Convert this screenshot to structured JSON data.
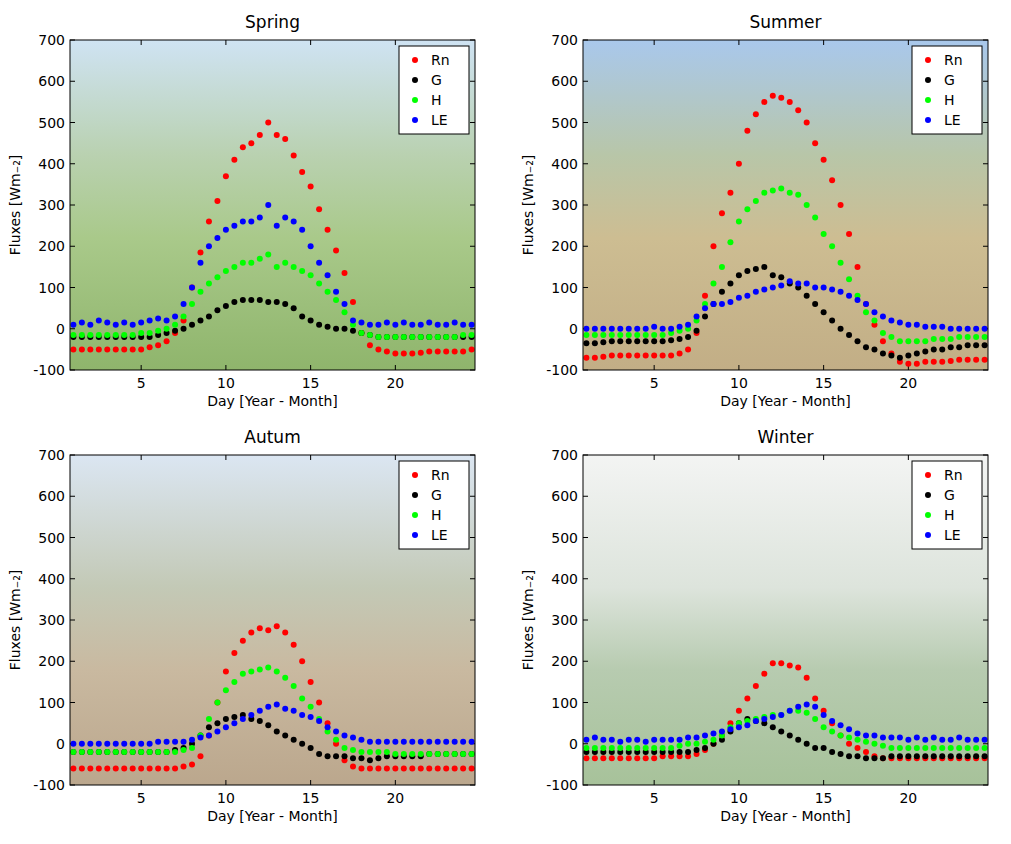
{
  "chart_data": [
    {
      "type": "scatter",
      "title": "Spring",
      "x_label": "Day [Year - Month]",
      "y_label": "Fluxes [Wm₋₂]",
      "marker": "circle",
      "legend": "upper right",
      "xlim": [
        0.8,
        24.7
      ],
      "xticks": [
        5,
        10,
        15,
        20
      ],
      "ylim": [
        -100,
        700
      ],
      "yticks": [
        -100,
        0,
        100,
        200,
        300,
        400,
        500,
        600,
        700
      ],
      "x": [
        1,
        1.5,
        2,
        2.5,
        3,
        3.5,
        4,
        4.5,
        5,
        5.5,
        6,
        6.5,
        7,
        7.5,
        8,
        8.5,
        9,
        9.5,
        10,
        10.5,
        11,
        11.5,
        12,
        12.5,
        13,
        13.5,
        14,
        14.5,
        15,
        15.5,
        16,
        16.5,
        17,
        17.5,
        18,
        18.5,
        19,
        19.5,
        20,
        20.5,
        21,
        21.5,
        22,
        22.5,
        23,
        23.5,
        24,
        24.5
      ],
      "series": [
        {
          "name": "Rn",
          "color": "#ff0000",
          "values": [
            -50,
            -50,
            -50,
            -50,
            -50,
            -50,
            -50,
            -50,
            -50,
            -45,
            -40,
            -30,
            -10,
            20,
            100,
            185,
            260,
            310,
            370,
            410,
            440,
            450,
            470,
            500,
            470,
            460,
            420,
            380,
            345,
            290,
            240,
            190,
            135,
            65,
            -10,
            -40,
            -50,
            -55,
            -60,
            -60,
            -60,
            -58,
            -55,
            -55,
            -55,
            -55,
            -55,
            -50
          ]
        },
        {
          "name": "G",
          "color": "#000000",
          "values": [
            -20,
            -20,
            -20,
            -20,
            -20,
            -20,
            -20,
            -20,
            -20,
            -20,
            -15,
            -10,
            -5,
            0,
            10,
            20,
            30,
            45,
            55,
            65,
            70,
            70,
            70,
            65,
            65,
            60,
            50,
            30,
            20,
            10,
            5,
            0,
            0,
            -5,
            -10,
            -15,
            -20,
            -20,
            -20,
            -20,
            -20,
            -20,
            -20,
            -20,
            -20,
            -20,
            -20,
            -20
          ]
        },
        {
          "name": "H",
          "color": "#00ff00",
          "values": [
            -15,
            -15,
            -15,
            -15,
            -15,
            -15,
            -15,
            -15,
            -10,
            -10,
            -5,
            0,
            10,
            30,
            60,
            90,
            110,
            125,
            140,
            150,
            160,
            160,
            170,
            180,
            150,
            160,
            150,
            140,
            130,
            110,
            90,
            70,
            40,
            10,
            -10,
            -15,
            -20,
            -20,
            -20,
            -20,
            -20,
            -20,
            -20,
            -20,
            -20,
            -20,
            -15,
            -15
          ]
        },
        {
          "name": "LE",
          "color": "#0000ff",
          "values": [
            10,
            15,
            10,
            20,
            15,
            10,
            15,
            10,
            15,
            20,
            25,
            20,
            30,
            60,
            100,
            160,
            200,
            220,
            240,
            250,
            260,
            260,
            270,
            300,
            250,
            270,
            260,
            240,
            200,
            160,
            130,
            90,
            60,
            20,
            15,
            10,
            10,
            15,
            10,
            15,
            10,
            10,
            15,
            10,
            10,
            15,
            10,
            10
          ]
        }
      ]
    },
    {
      "type": "scatter",
      "title": "Summer",
      "x_label": "Day [Year - Month]",
      "y_label": "Fluxes [Wm₋₂]",
      "marker": "circle",
      "legend": "upper right",
      "xlim": [
        0.8,
        24.7
      ],
      "xticks": [
        5,
        10,
        15,
        20
      ],
      "ylim": [
        -100,
        700
      ],
      "yticks": [
        -100,
        0,
        100,
        200,
        300,
        400,
        500,
        600,
        700
      ],
      "x": [
        1,
        1.5,
        2,
        2.5,
        3,
        3.5,
        4,
        4.5,
        5,
        5.5,
        6,
        6.5,
        7,
        7.5,
        8,
        8.5,
        9,
        9.5,
        10,
        10.5,
        11,
        11.5,
        12,
        12.5,
        13,
        13.5,
        14,
        14.5,
        15,
        15.5,
        16,
        16.5,
        17,
        17.5,
        18,
        18.5,
        19,
        19.5,
        20,
        20.5,
        21,
        21.5,
        22,
        22.5,
        23,
        23.5,
        24,
        24.5
      ],
      "series": [
        {
          "name": "Rn",
          "color": "#ff0000",
          "values": [
            -70,
            -70,
            -68,
            -65,
            -65,
            -65,
            -65,
            -65,
            -65,
            -65,
            -65,
            -60,
            -50,
            -10,
            80,
            200,
            280,
            330,
            400,
            480,
            520,
            550,
            565,
            560,
            550,
            530,
            500,
            450,
            410,
            360,
            300,
            230,
            150,
            60,
            10,
            -30,
            -60,
            -80,
            -85,
            -85,
            -80,
            -80,
            -80,
            -78,
            -75,
            -75,
            -75,
            -75
          ]
        },
        {
          "name": "G",
          "color": "#000000",
          "values": [
            -35,
            -35,
            -33,
            -30,
            -30,
            -30,
            -30,
            -30,
            -30,
            -30,
            -28,
            -25,
            -20,
            -5,
            30,
            60,
            90,
            110,
            130,
            140,
            145,
            150,
            130,
            125,
            110,
            100,
            80,
            60,
            40,
            20,
            0,
            -15,
            -30,
            -45,
            -50,
            -60,
            -65,
            -70,
            -65,
            -60,
            -55,
            -50,
            -50,
            -45,
            -45,
            -40,
            -40,
            -40
          ]
        },
        {
          "name": "H",
          "color": "#00ff00",
          "values": [
            -15,
            -15,
            -15,
            -15,
            -15,
            -15,
            -15,
            -15,
            -15,
            -15,
            -10,
            -5,
            0,
            20,
            60,
            110,
            150,
            210,
            260,
            290,
            310,
            330,
            335,
            340,
            330,
            325,
            300,
            270,
            230,
            200,
            160,
            120,
            80,
            40,
            20,
            -10,
            -20,
            -30,
            -30,
            -30,
            -30,
            -25,
            -25,
            -25,
            -20,
            -20,
            -20,
            -20
          ]
        },
        {
          "name": "LE",
          "color": "#0000ff",
          "values": [
            0,
            0,
            0,
            0,
            0,
            0,
            0,
            0,
            5,
            0,
            0,
            5,
            10,
            30,
            50,
            60,
            60,
            65,
            75,
            80,
            90,
            95,
            100,
            105,
            115,
            110,
            110,
            100,
            100,
            95,
            90,
            80,
            70,
            60,
            40,
            30,
            20,
            15,
            10,
            10,
            5,
            5,
            5,
            0,
            0,
            0,
            0,
            0
          ]
        }
      ]
    },
    {
      "type": "scatter",
      "title": "Autum",
      "x_label": "Day [Year - Month]",
      "y_label": "Fluxes [Wm₋₂]",
      "marker": "circle",
      "legend": "upper right",
      "xlim": [
        0.8,
        24.7
      ],
      "xticks": [
        5,
        10,
        15,
        20
      ],
      "ylim": [
        -100,
        700
      ],
      "yticks": [
        -100,
        0,
        100,
        200,
        300,
        400,
        500,
        600,
        700
      ],
      "x": [
        1,
        1.5,
        2,
        2.5,
        3,
        3.5,
        4,
        4.5,
        5,
        5.5,
        6,
        6.5,
        7,
        7.5,
        8,
        8.5,
        9,
        9.5,
        10,
        10.5,
        11,
        11.5,
        12,
        12.5,
        13,
        13.5,
        14,
        14.5,
        15,
        15.5,
        16,
        16.5,
        17,
        17.5,
        18,
        18.5,
        19,
        19.5,
        20,
        20.5,
        21,
        21.5,
        22,
        22.5,
        23,
        23.5,
        24,
        24.5
      ],
      "series": [
        {
          "name": "Rn",
          "color": "#ff0000",
          "values": [
            -60,
            -60,
            -60,
            -60,
            -60,
            -60,
            -60,
            -60,
            -60,
            -60,
            -60,
            -60,
            -60,
            -55,
            -50,
            -30,
            20,
            100,
            175,
            220,
            250,
            270,
            280,
            275,
            285,
            270,
            240,
            200,
            150,
            100,
            50,
            0,
            -40,
            -55,
            -60,
            -60,
            -60,
            -60,
            -60,
            -60,
            -60,
            -60,
            -60,
            -60,
            -60,
            -60,
            -60,
            -60
          ]
        },
        {
          "name": "G",
          "color": "#000000",
          "values": [
            -20,
            -20,
            -20,
            -20,
            -20,
            -20,
            -20,
            -20,
            -20,
            -20,
            -20,
            -20,
            -15,
            -10,
            0,
            20,
            40,
            50,
            60,
            65,
            70,
            60,
            55,
            45,
            30,
            20,
            10,
            0,
            -10,
            -25,
            -30,
            -30,
            -30,
            -35,
            -35,
            -40,
            -35,
            -30,
            -30,
            -30,
            -30,
            -30,
            -25,
            -25,
            -25,
            -25,
            -25,
            -25
          ]
        },
        {
          "name": "H",
          "color": "#00ff00",
          "values": [
            -20,
            -20,
            -20,
            -20,
            -20,
            -20,
            -20,
            -20,
            -20,
            -20,
            -20,
            -20,
            -20,
            -15,
            -10,
            20,
            60,
            100,
            130,
            150,
            170,
            175,
            180,
            185,
            175,
            160,
            140,
            110,
            90,
            60,
            30,
            10,
            -10,
            -15,
            -20,
            -20,
            -20,
            -20,
            -25,
            -25,
            -25,
            -25,
            -25,
            -25,
            -25,
            -25,
            -25,
            -25
          ]
        },
        {
          "name": "LE",
          "color": "#0000ff",
          "values": [
            0,
            0,
            0,
            0,
            0,
            0,
            0,
            0,
            0,
            0,
            5,
            5,
            5,
            5,
            10,
            15,
            20,
            30,
            40,
            50,
            60,
            70,
            80,
            90,
            95,
            85,
            80,
            70,
            65,
            55,
            40,
            30,
            20,
            15,
            10,
            5,
            5,
            5,
            5,
            5,
            5,
            5,
            5,
            5,
            5,
            5,
            5,
            5
          ]
        }
      ]
    },
    {
      "type": "scatter",
      "title": "Winter",
      "x_label": "Day [Year - Month]",
      "y_label": "Fluxes [Wm₋₂]",
      "marker": "circle",
      "legend": "upper right",
      "xlim": [
        0.8,
        24.7
      ],
      "xticks": [
        5,
        10,
        15,
        20
      ],
      "ylim": [
        -100,
        700
      ],
      "yticks": [
        -100,
        0,
        100,
        200,
        300,
        400,
        500,
        600,
        700
      ],
      "x": [
        1,
        1.5,
        2,
        2.5,
        3,
        3.5,
        4,
        4.5,
        5,
        5.5,
        6,
        6.5,
        7,
        7.5,
        8,
        8.5,
        9,
        9.5,
        10,
        10.5,
        11,
        11.5,
        12,
        12.5,
        13,
        13.5,
        14,
        14.5,
        15,
        15.5,
        16,
        16.5,
        17,
        17.5,
        18,
        18.5,
        19,
        19.5,
        20,
        20.5,
        21,
        21.5,
        22,
        22.5,
        23,
        23.5,
        24,
        24.5
      ],
      "series": [
        {
          "name": "Rn",
          "color": "#ff0000",
          "values": [
            -35,
            -35,
            -35,
            -35,
            -35,
            -35,
            -35,
            -35,
            -35,
            -30,
            -30,
            -30,
            -30,
            -25,
            -15,
            0,
            20,
            50,
            80,
            110,
            140,
            170,
            195,
            195,
            190,
            185,
            160,
            110,
            80,
            50,
            20,
            0,
            -10,
            -20,
            -30,
            -35,
            -35,
            -35,
            -35,
            -35,
            -35,
            -35,
            -35,
            -35,
            -35,
            -35,
            -35,
            -35
          ]
        },
        {
          "name": "G",
          "color": "#000000",
          "values": [
            -20,
            -20,
            -20,
            -20,
            -20,
            -20,
            -20,
            -20,
            -20,
            -20,
            -20,
            -20,
            -20,
            -15,
            -10,
            0,
            10,
            30,
            50,
            60,
            55,
            50,
            40,
            30,
            20,
            10,
            0,
            -10,
            -10,
            -20,
            -25,
            -30,
            -30,
            -35,
            -35,
            -35,
            -30,
            -30,
            -30,
            -30,
            -30,
            -30,
            -30,
            -30,
            -30,
            -30,
            -30,
            -30
          ]
        },
        {
          "name": "H",
          "color": "#00ff00",
          "values": [
            -10,
            -10,
            -10,
            -10,
            -10,
            -10,
            -10,
            -10,
            -10,
            -10,
            -10,
            -5,
            0,
            0,
            5,
            10,
            20,
            40,
            50,
            55,
            60,
            65,
            70,
            70,
            80,
            80,
            75,
            60,
            40,
            30,
            20,
            15,
            10,
            5,
            0,
            -5,
            -10,
            -10,
            -10,
            -10,
            -10,
            -10,
            -10,
            -10,
            -10,
            -10,
            -10,
            -10
          ]
        },
        {
          "name": "LE",
          "color": "#0000ff",
          "values": [
            10,
            15,
            10,
            10,
            5,
            10,
            10,
            5,
            10,
            10,
            10,
            10,
            15,
            15,
            20,
            25,
            30,
            35,
            40,
            45,
            55,
            60,
            65,
            70,
            80,
            90,
            95,
            90,
            70,
            55,
            45,
            35,
            25,
            20,
            20,
            15,
            15,
            15,
            10,
            15,
            10,
            15,
            10,
            10,
            15,
            10,
            10,
            10
          ]
        }
      ]
    }
  ]
}
